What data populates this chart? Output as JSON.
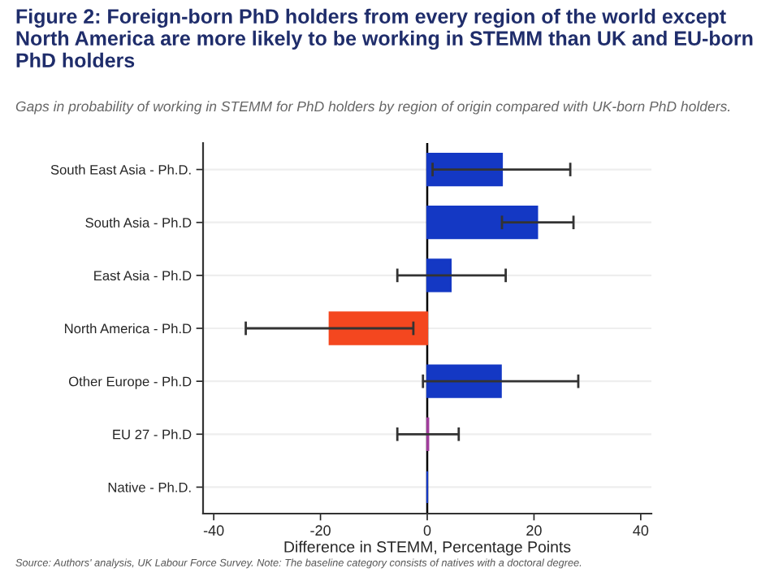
{
  "chart_data": {
    "type": "bar",
    "orientation": "horizontal",
    "title": "Figure 2: Foreign-born PhD holders from every region of the world except North America are more likely to be working in STEMM than UK and EU-born PhD holders",
    "subtitle": "Gaps in probability of working in STEMM for PhD holders by region of origin compared with UK-born PhD holders.",
    "xlabel": "Difference in STEMM, Percentage Points",
    "categories": [
      "South East Asia - Ph.D.",
      "South Asia - Ph.D",
      "East Asia - Ph.D",
      "North America - Ph.D",
      "Other Europe - Ph.D",
      "EU 27 - Ph.D",
      "Native - Ph.D."
    ],
    "values": [
      14,
      20.6,
      4.4,
      -18.3,
      13.8,
      0.2,
      0
    ],
    "colors": [
      "#1438c4",
      "#1438c4",
      "#1438c4",
      "#f4471f",
      "#1438c4",
      "#a03c9c",
      "#1438c4"
    ],
    "errors": [
      [
        1,
        26.8
      ],
      [
        14,
        27.4
      ],
      [
        -5.6,
        14.7
      ],
      [
        -34,
        -2.6
      ],
      [
        -0.8,
        28.3
      ],
      [
        -5.6,
        5.9
      ],
      null
    ],
    "xlim": [
      -42,
      42
    ],
    "xticks": [
      -40,
      -20,
      0,
      20,
      40
    ],
    "grid": "y",
    "ref_lines": [
      {
        "axis": "x",
        "value": 0,
        "color": "#000000"
      }
    ],
    "annotations": [
      "Source: Authors' analysis, UK Labour Force Survey. Note: The baseline category consists of natives with a doctoral degree."
    ]
  }
}
